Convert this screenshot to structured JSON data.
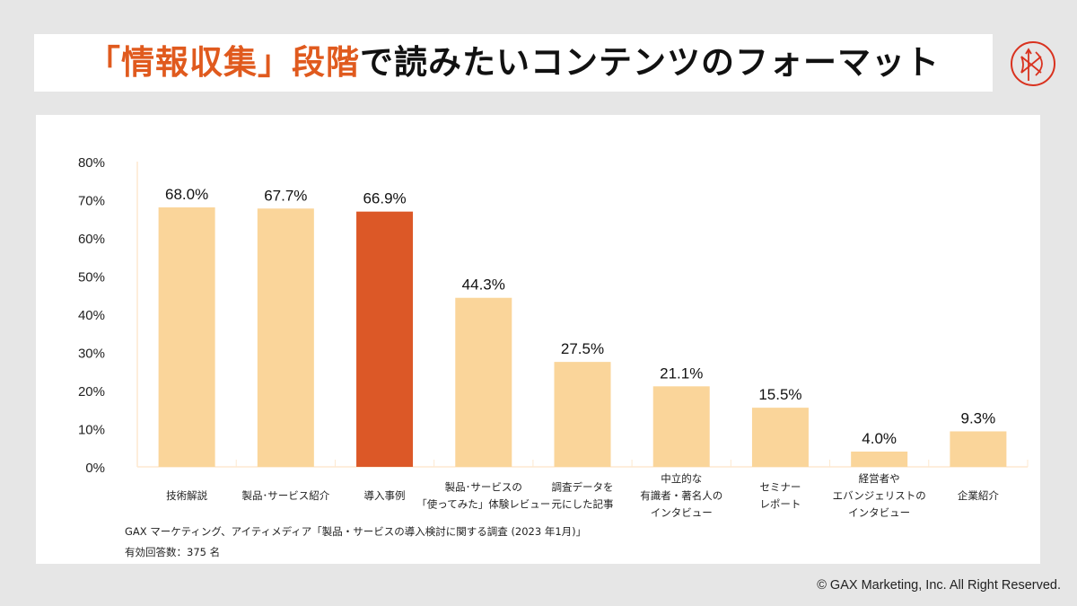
{
  "header": {
    "title_highlight": "「情報収集」段階",
    "title_rest": "で読みたいコンテンツのフォーマット",
    "logo_icon": "circle-arrow-bow-logo-icon"
  },
  "colors": {
    "accent": "#e05a1e",
    "bar_default": "#fad59a",
    "bar_highlight": "#dc5827",
    "axis_line": "#fde9d0",
    "background": "#e6e6e6"
  },
  "chart_data": {
    "type": "bar",
    "title": "「情報収集」段階で読みたいコンテンツのフォーマット",
    "xlabel": "",
    "ylabel": "",
    "ylim": [
      0,
      80
    ],
    "yticks": [
      "0%",
      "10%",
      "20%",
      "30%",
      "40%",
      "50%",
      "60%",
      "70%",
      "80%"
    ],
    "grid": false,
    "legend": "none",
    "categories": [
      [
        "技術解説"
      ],
      [
        "製品･サービス紹介"
      ],
      [
        "導入事例"
      ],
      [
        "製品･サービスの",
        "「使ってみた」体験レビュー"
      ],
      [
        "調査データを",
        "元にした記事"
      ],
      [
        "中立的な",
        "有識者・著名人の",
        "インタビュー"
      ],
      [
        "セミナー",
        "レポート"
      ],
      [
        "経営者や",
        "エバンジェリストの",
        "インタビュー"
      ],
      [
        "企業紹介"
      ]
    ],
    "values": [
      68.0,
      67.7,
      66.9,
      44.3,
      27.5,
      21.1,
      15.5,
      4.0,
      9.3
    ],
    "data_labels": [
      "68.0%",
      "67.7%",
      "66.9%",
      "44.3%",
      "27.5%",
      "21.1%",
      "15.5%",
      "4.0%",
      "9.3%"
    ],
    "highlight_index": 2
  },
  "source": {
    "line1": "GAX マーケティング、アイティメディア「製品・サービスの導入検討に関する調査 (2023 年1月)」",
    "line2": "有効回答数：375 名"
  },
  "footer": {
    "copyright": "© GAX Marketing, Inc. All Right Reserved."
  }
}
